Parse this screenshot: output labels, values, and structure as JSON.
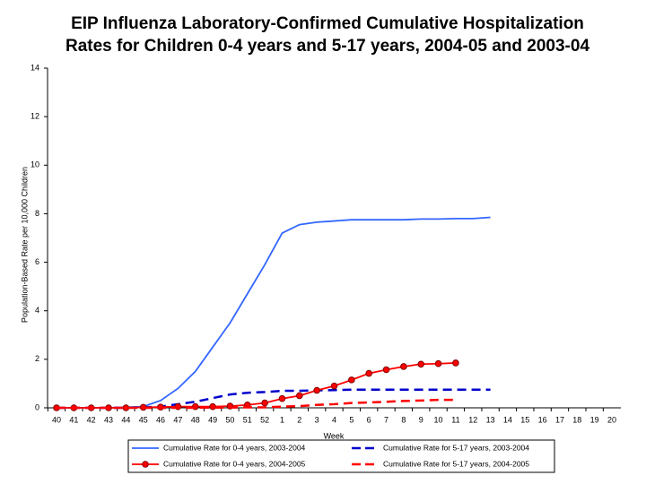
{
  "chart_data": {
    "type": "line",
    "title": [
      "EIP Influenza Laboratory-Confirmed Cumulative Hospitalization",
      "Rates for Children 0-4 years and 5-17 years, 2004-05 and 2003-04"
    ],
    "x_label": "Week",
    "y_label": "Population-Based Rate per 10,000 Children",
    "categories": [
      "40",
      "41",
      "42",
      "43",
      "44",
      "45",
      "46",
      "47",
      "48",
      "49",
      "50",
      "51",
      "52",
      "1",
      "2",
      "3",
      "4",
      "5",
      "6",
      "7",
      "8",
      "9",
      "10",
      "11",
      "12",
      "13",
      "14",
      "15",
      "16",
      "17",
      "18",
      "19",
      "20"
    ],
    "ylim": [
      0,
      14
    ],
    "yticks": [
      0,
      2,
      4,
      6,
      8,
      10,
      12,
      14
    ],
    "grid": false,
    "series": [
      {
        "name": "Cumulative Rate for 0-4 years, 2003-2004",
        "color": "#3366ff",
        "style": "solid",
        "values": [
          0,
          0,
          0,
          0,
          0.02,
          0.05,
          0.3,
          0.8,
          1.5,
          2.5,
          3.5,
          4.7,
          5.9,
          7.2,
          7.55,
          7.65,
          7.7,
          7.75,
          7.75,
          7.75,
          7.75,
          7.78,
          7.78,
          7.8,
          7.8,
          7.85,
          null,
          null,
          null,
          null,
          null,
          null,
          null
        ]
      },
      {
        "name": "Cumulative Rate for 5-17 years, 2003-2004",
        "color": "#0000cc",
        "style": "dashed",
        "values": [
          0,
          0,
          0,
          0,
          0,
          0.02,
          0.05,
          0.15,
          0.25,
          0.4,
          0.55,
          0.62,
          0.65,
          0.7,
          0.7,
          0.72,
          0.73,
          0.75,
          0.75,
          0.75,
          0.75,
          0.75,
          0.75,
          0.75,
          0.75,
          0.75,
          null,
          null,
          null,
          null,
          null,
          null,
          null
        ]
      },
      {
        "name": "Cumulative Rate for 0-4 years, 2004-2005",
        "color": "#ff0000",
        "style": "solid",
        "marker": "circle",
        "values": [
          0,
          0,
          0,
          0,
          0,
          0.02,
          0.03,
          0.05,
          0.05,
          0.05,
          0.07,
          0.12,
          0.2,
          0.38,
          0.5,
          0.72,
          0.9,
          1.15,
          1.42,
          1.57,
          1.7,
          1.8,
          1.82,
          1.85,
          null,
          null,
          null,
          null,
          null,
          null,
          null,
          null,
          null
        ]
      },
      {
        "name": "Cumulative Rate for 5-17 years, 2004-2005",
        "color": "#ff0000",
        "style": "dashed",
        "values": [
          0,
          0,
          0,
          0,
          0,
          0,
          0,
          0,
          0,
          0.01,
          0.01,
          0.02,
          0.02,
          0.05,
          0.07,
          0.12,
          0.15,
          0.2,
          0.22,
          0.25,
          0.28,
          0.3,
          0.33,
          0.33,
          null,
          null,
          null,
          null,
          null,
          null,
          null,
          null,
          null
        ]
      }
    ]
  }
}
